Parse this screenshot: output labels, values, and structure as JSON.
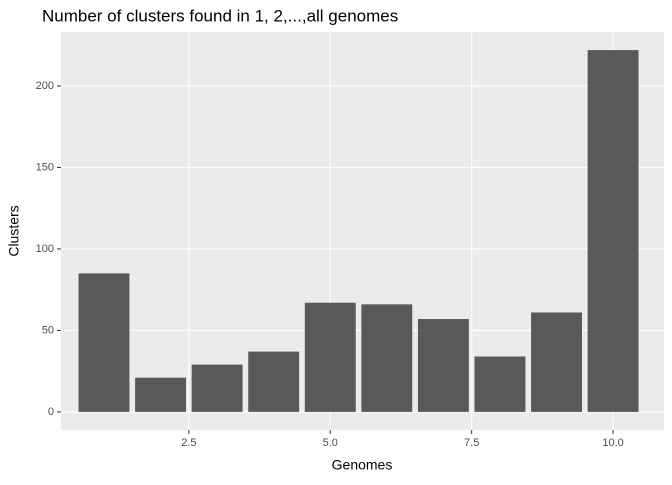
{
  "chart_data": {
    "type": "bar",
    "title": "Number of clusters found in 1, 2,...,all genomes",
    "x_label": "Genomes",
    "y_label": "Clusters",
    "x": [
      1,
      2,
      3,
      4,
      5,
      6,
      7,
      8,
      9,
      10
    ],
    "values": [
      85,
      21,
      29,
      37,
      67,
      66,
      57,
      34,
      61,
      222
    ],
    "color": "#595959",
    "xlim": [
      0.24,
      10.9
    ],
    "xticks": [
      2.5,
      {
        "value": 5,
        "label": "5.0"
      },
      7.5,
      {
        "value": 10,
        "label": "10.0"
      }
    ],
    "ylim": [
      -11.1,
      233.1
    ],
    "yticks": [
      0,
      50,
      100,
      150,
      200
    ],
    "grid": true
  }
}
